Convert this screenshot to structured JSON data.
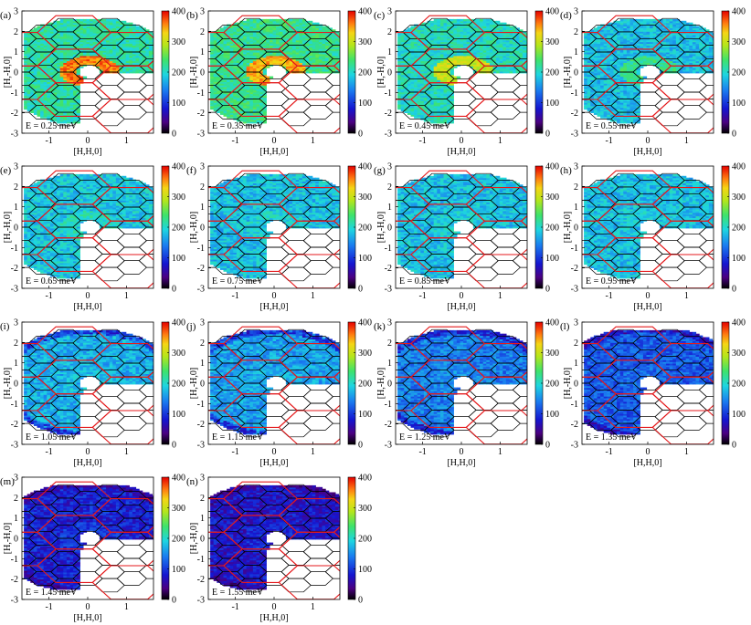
{
  "figure": {
    "panel_labels": [
      "(a)",
      "(b)",
      "(c)",
      "(d)",
      "(e)",
      "(f)",
      "(g)",
      "(h)",
      "(i)",
      "(j)",
      "(k)",
      "(l)",
      "(m)",
      "(n)"
    ],
    "energy_labels": [
      "E = 0.25 meV",
      "E = 0.35 meV",
      "E = 0.45 meV",
      "E = 0.55 meV",
      "E = 0.65 meV",
      "E = 0.75 meV",
      "E = 0.85 meV",
      "E = 0.95 meV",
      "E = 1.05 meV",
      "E = 1.15 meV",
      "E = 1.25 meV",
      "E = 1.35 meV",
      "E = 1.45 meV",
      "E = 1.55 meV"
    ],
    "xlabel": "[H,H,0]",
    "ylabel": "[H,-H,0]",
    "colormap": "jet-like (black-purple-blue-cyan-green-yellow-red)"
  },
  "chart_data": {
    "type": "heatmap",
    "subplots": 14,
    "layout_rows": [
      4,
      4,
      4,
      2
    ],
    "x_ticks": [
      -1,
      0,
      1
    ],
    "y_ticks": [
      -3,
      -2,
      -1,
      0,
      1,
      2,
      3
    ],
    "xlim": [
      -1.7,
      1.7
    ],
    "ylim": [
      -3,
      3
    ],
    "colorbar_ticks": [
      0,
      100,
      200,
      300,
      400
    ],
    "clim": [
      0,
      400
    ],
    "overlays": [
      "red large hexagons (structural zones)",
      "black small hexagons (Brillouin zones)"
    ],
    "panels": [
      {
        "label": "(a)",
        "energy_meV": 0.25,
        "ring_value": 360,
        "bg_value": 215
      },
      {
        "label": "(b)",
        "energy_meV": 0.35,
        "ring_value": 345,
        "bg_value": 225
      },
      {
        "label": "(c)",
        "energy_meV": 0.45,
        "ring_value": 300,
        "bg_value": 205
      },
      {
        "label": "(d)",
        "energy_meV": 0.55,
        "ring_value": 225,
        "bg_value": 180
      },
      {
        "label": "(e)",
        "energy_meV": 0.65,
        "ring_value": 205,
        "bg_value": 185
      },
      {
        "label": "(f)",
        "energy_meV": 0.75,
        "ring_value": 195,
        "bg_value": 180
      },
      {
        "label": "(g)",
        "energy_meV": 0.85,
        "ring_value": 190,
        "bg_value": 180
      },
      {
        "label": "(h)",
        "energy_meV": 0.95,
        "ring_value": 185,
        "bg_value": 180
      },
      {
        "label": "(i)",
        "energy_meV": 1.05,
        "ring_value": 180,
        "bg_value": 170
      },
      {
        "label": "(j)",
        "energy_meV": 1.15,
        "ring_value": 170,
        "bg_value": 160
      },
      {
        "label": "(k)",
        "energy_meV": 1.25,
        "ring_value": 150,
        "bg_value": 140
      },
      {
        "label": "(l)",
        "energy_meV": 1.35,
        "ring_value": 130,
        "bg_value": 120
      },
      {
        "label": "(m)",
        "energy_meV": 1.45,
        "ring_value": 100,
        "bg_value": 85
      },
      {
        "label": "(n)",
        "energy_meV": 1.55,
        "ring_value": 90,
        "bg_value": 75
      }
    ]
  }
}
